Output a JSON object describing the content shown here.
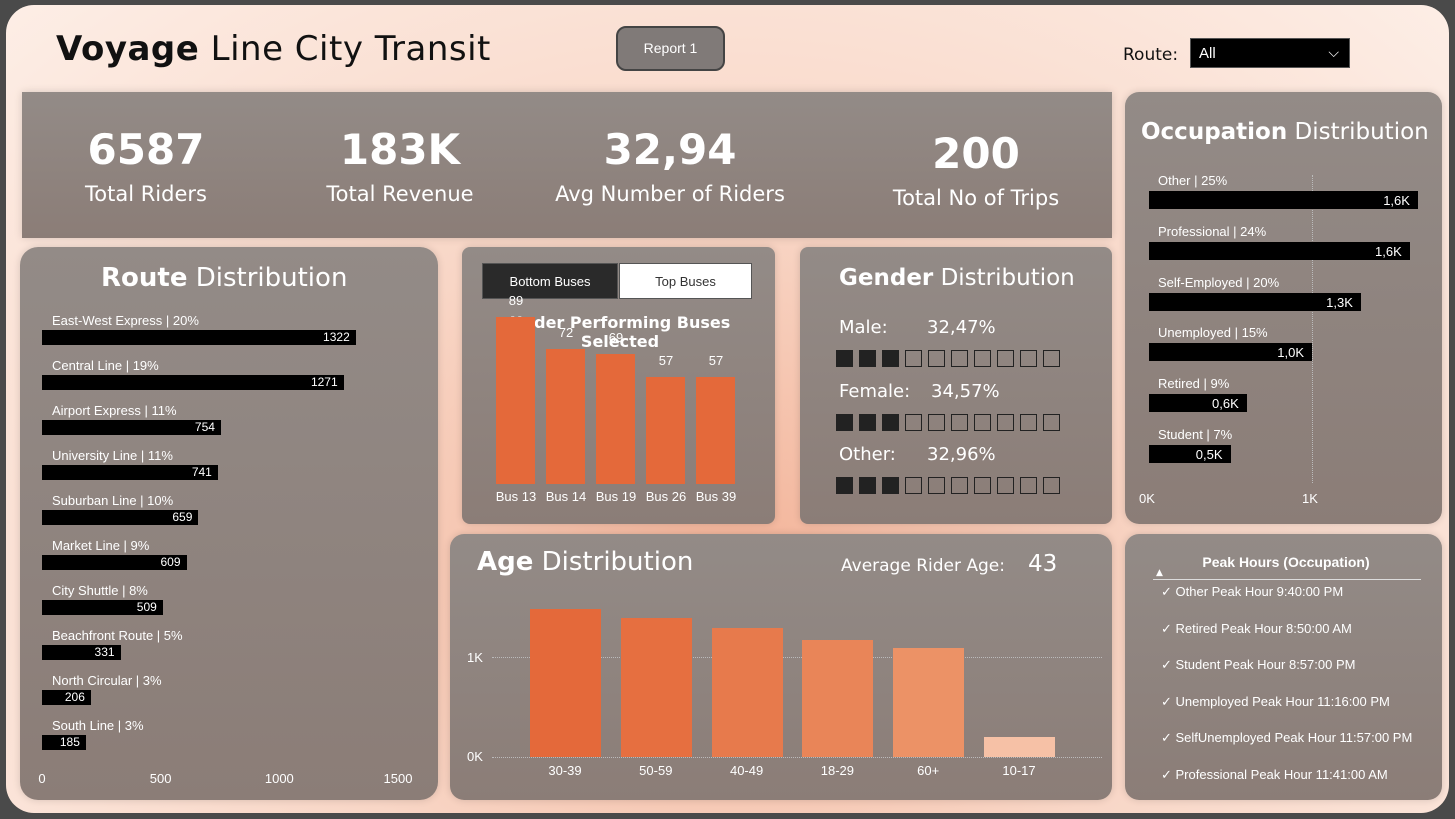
{
  "header": {
    "title_bold": "Voyage",
    "title_rest": " Line City Transit",
    "report_button": "Report 1",
    "route_label": "Route:",
    "route_value": "All"
  },
  "kpis": [
    {
      "value": "6587",
      "label": "Total Riders"
    },
    {
      "value": "183K",
      "label": "Total Revenue"
    },
    {
      "value": "32,94",
      "label": "Avg Number of Riders"
    },
    {
      "value": "200",
      "label": "Total No of Trips"
    }
  ],
  "route_panel": {
    "title_bold": "Route",
    "title_rest": " Distribution"
  },
  "occupation_panel": {
    "title_bold": "Occupation",
    "title_rest": " Distribution"
  },
  "gender_panel": {
    "title_bold": "Gender",
    "title_rest": " Distribution"
  },
  "age_panel": {
    "title_bold": "Age",
    "title_rest": " Distribution",
    "avg_label": "Average Rider Age:",
    "avg_value": "43"
  },
  "buses_panel": {
    "toggle_bottom": "Bottom Buses",
    "toggle_top": "Top Buses",
    "subtitle": "Under Performing Buses Selected"
  },
  "peak_panel": {
    "title": "Peak Hours (Occupation)",
    "items": [
      "✓ Other Peak Hour 9:40:00 PM",
      "✓ Retired Peak Hour 8:50:00 AM",
      "✓ Student Peak Hour 8:57:00 PM",
      "✓ Unemployed Peak Hour 11:16:00 PM",
      "✓ SelfUnemployed Peak Hour 11:57:00 PM",
      "✓ Professional Peak Hour 11:41:00 AM"
    ]
  },
  "colors": {
    "accent": "#e4693a",
    "panel": "#8f8480",
    "bar": "#000000"
  },
  "chart_data": [
    {
      "type": "bar",
      "orientation": "horizontal",
      "title": "Route Distribution",
      "categories": [
        "East-West Express | 20%",
        "Central Line | 19%",
        "Airport Express | 11%",
        "University Line | 11%",
        "Suburban Line | 10%",
        "Market Line | 9%",
        "City Shuttle | 8%",
        "Beachfront Route | 5%",
        "North Circular | 3%",
        "South Line | 3%"
      ],
      "values": [
        1322,
        1271,
        754,
        741,
        659,
        609,
        509,
        331,
        206,
        185
      ],
      "value_labels": [
        "1322",
        "1271",
        "754",
        "741",
        "659",
        "609",
        "509",
        "331",
        "206",
        "185"
      ],
      "xlim": [
        0,
        1500
      ],
      "xticks": [
        "0",
        "500",
        "1000",
        "1500"
      ]
    },
    {
      "type": "bar",
      "title": "Under Performing Buses Selected",
      "categories": [
        "Bus 13",
        "Bus 14",
        "Bus 19",
        "Bus 26",
        "Bus 39"
      ],
      "values": [
        89,
        72,
        69,
        57,
        57
      ],
      "value_labels": [
        "89",
        "72",
        "69",
        "57",
        "57"
      ],
      "ylim": [
        0,
        100
      ]
    },
    {
      "type": "table",
      "title": "Gender Distribution",
      "rows": [
        {
          "label": "Male:",
          "value": "32,47%",
          "filled": 3,
          "total": 10
        },
        {
          "label": "Female:",
          "value": "34,57%",
          "filled": 3,
          "total": 10
        },
        {
          "label": "Other:",
          "value": "32,96%",
          "filled": 3,
          "total": 10
        }
      ]
    },
    {
      "type": "bar",
      "orientation": "horizontal",
      "title": "Occupation Distribution",
      "categories": [
        "Other | 25%",
        "Professional | 24%",
        "Self-Employed | 20%",
        "Unemployed | 15%",
        "Retired | 9%",
        "Student | 7%"
      ],
      "values": [
        1650,
        1600,
        1300,
        1000,
        600,
        500
      ],
      "value_labels": [
        "1,6K",
        "1,6K",
        "1,3K",
        "1,0K",
        "0,6K",
        "0,5K"
      ],
      "xlim": [
        0,
        1800
      ],
      "xticks": [
        "0K",
        "1K"
      ]
    },
    {
      "type": "bar",
      "title": "Age Distribution",
      "categories": [
        "30-39",
        "50-59",
        "40-49",
        "18-29",
        "60+",
        "10-17"
      ],
      "values": [
        1490,
        1400,
        1300,
        1185,
        1105,
        200
      ],
      "ylim": [
        0,
        2000
      ],
      "yticks": [
        "0K",
        "1K"
      ],
      "colors": [
        "#e4693a",
        "#e66f40",
        "#e77a4c",
        "#e98558",
        "#ec9266",
        "#f6c1a6"
      ]
    }
  ]
}
